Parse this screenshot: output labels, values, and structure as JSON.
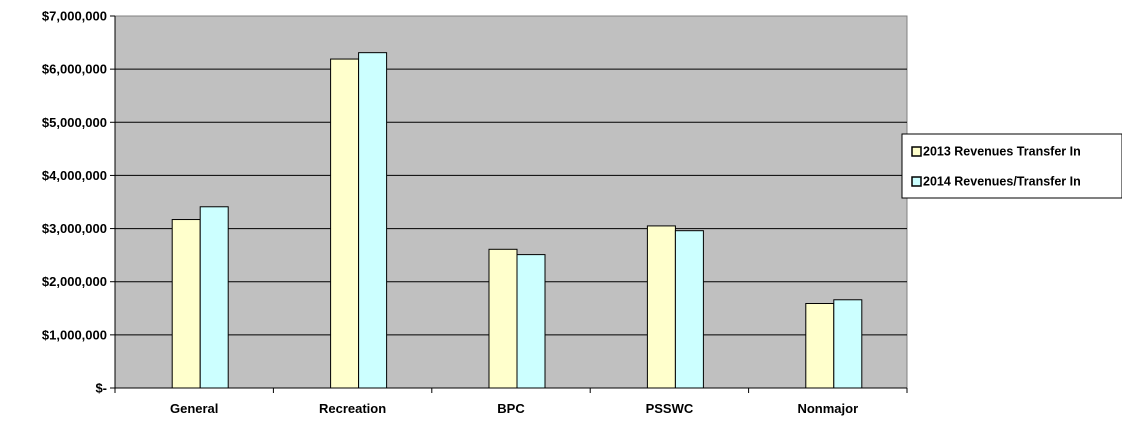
{
  "chart_data": {
    "type": "bar",
    "categories": [
      "General",
      "Recreation",
      "BPC",
      "PSSWC",
      "Nonmajor"
    ],
    "series": [
      {
        "name": "2013 Revenues Transfer In",
        "color": "#FFFFCC",
        "values": [
          3170000,
          6190000,
          2610000,
          3050000,
          1590000
        ]
      },
      {
        "name": "2014 Revenues/Transfer In",
        "color": "#CCFFFF",
        "values": [
          3410000,
          6310000,
          2510000,
          2960000,
          1660000
        ]
      }
    ],
    "ylim": [
      0,
      7000000
    ],
    "yticks": [
      {
        "value": 0,
        "label": "$-"
      },
      {
        "value": 1000000,
        "label": "$1,000,000"
      },
      {
        "value": 2000000,
        "label": "$2,000,000"
      },
      {
        "value": 3000000,
        "label": "$3,000,000"
      },
      {
        "value": 4000000,
        "label": "$4,000,000"
      },
      {
        "value": 5000000,
        "label": "$5,000,000"
      },
      {
        "value": 6000000,
        "label": "$6,000,000"
      },
      {
        "value": 7000000,
        "label": "$7,000,000"
      }
    ],
    "plot_background": "#C0C0C0",
    "grid": true,
    "legend_position": "right"
  }
}
